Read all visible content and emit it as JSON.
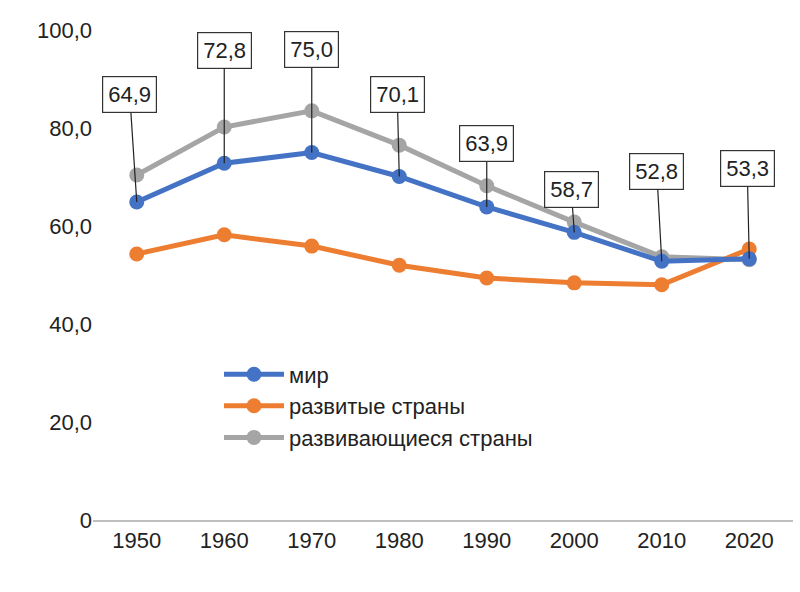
{
  "chart_data": {
    "type": "line",
    "categories": [
      "1950",
      "1960",
      "1970",
      "1980",
      "1990",
      "2000",
      "2010",
      "2020"
    ],
    "series": [
      {
        "name": "мир",
        "color": "#4472c4",
        "marker": "circle",
        "data_labels": true,
        "values": [
          64.9,
          72.8,
          75.0,
          70.1,
          63.9,
          58.7,
          52.8,
          53.3
        ],
        "value_labels": [
          "64,9",
          "72,8",
          "75,0",
          "70,1",
          "63,9",
          "58,7",
          "52,8",
          "53,3"
        ]
      },
      {
        "name": "развитые страны",
        "color": "#ed7d31",
        "marker": "circle",
        "values": [
          54.3,
          58.2,
          55.9,
          52.0,
          49.4,
          48.4,
          48.0,
          55.3
        ]
      },
      {
        "name": "развивающиеся страны",
        "color": "#a5a5a5",
        "marker": "circle",
        "values": [
          70.4,
          80.2,
          83.5,
          76.5,
          68.2,
          60.8,
          53.7,
          53.1
        ]
      }
    ],
    "ylim": [
      0,
      100
    ],
    "yticks": [
      0,
      {
        "value": 20,
        "label": "20,0"
      },
      {
        "value": 40,
        "label": "40,0"
      },
      {
        "value": 60,
        "label": "60,0"
      },
      {
        "value": 80,
        "label": "80,0"
      },
      {
        "value": 100,
        "label": "100,0"
      }
    ],
    "grid": false,
    "legend": "lower center"
  }
}
